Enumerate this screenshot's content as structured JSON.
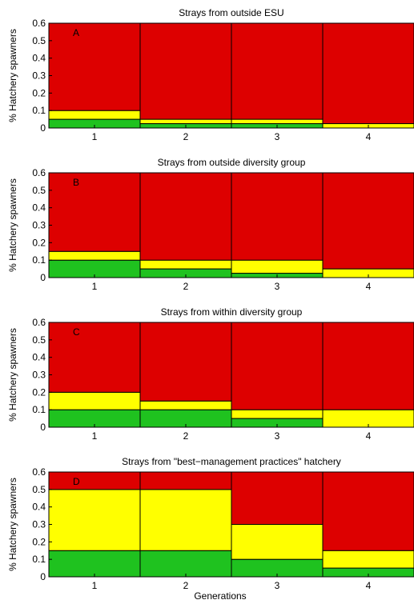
{
  "chart_data": [
    {
      "type": "bar",
      "stacked": true,
      "panel_label": "A",
      "title": "Strays from outside ESU",
      "ylabel": "% Hatchery spawners",
      "xlabel": "",
      "categories": [
        "1",
        "2",
        "3",
        "4"
      ],
      "ylim": [
        0,
        0.6
      ],
      "yticks": [
        "0",
        "0.1",
        "0.2",
        "0.3",
        "0.4",
        "0.5",
        "0.6"
      ],
      "zones": [
        {
          "color": "#1fc21f",
          "upper": [
            0.05,
            0.025,
            0.025,
            0
          ]
        },
        {
          "color": "#ffff00",
          "upper": [
            0.1,
            0.05,
            0.05,
            0.025
          ]
        },
        {
          "color": "#dd0000",
          "upper": [
            0.6,
            0.6,
            0.6,
            0.6
          ]
        }
      ]
    },
    {
      "type": "bar",
      "stacked": true,
      "panel_label": "B",
      "title": "Strays from outside diversity group",
      "ylabel": "% Hatchery spawners",
      "xlabel": "",
      "categories": [
        "1",
        "2",
        "3",
        "4"
      ],
      "ylim": [
        0,
        0.6
      ],
      "yticks": [
        "0",
        "0.1",
        "0.2",
        "0.3",
        "0.4",
        "0.5",
        "0.6"
      ],
      "zones": [
        {
          "color": "#1fc21f",
          "upper": [
            0.1,
            0.05,
            0.025,
            0
          ]
        },
        {
          "color": "#ffff00",
          "upper": [
            0.15,
            0.1,
            0.1,
            0.05
          ]
        },
        {
          "color": "#dd0000",
          "upper": [
            0.6,
            0.6,
            0.6,
            0.6
          ]
        }
      ]
    },
    {
      "type": "bar",
      "stacked": true,
      "panel_label": "C",
      "title": "Strays from within diversity group",
      "ylabel": "% Hatchery spawners",
      "xlabel": "",
      "categories": [
        "1",
        "2",
        "3",
        "4"
      ],
      "ylim": [
        0,
        0.6
      ],
      "yticks": [
        "0",
        "0.1",
        "0.2",
        "0.3",
        "0.4",
        "0.5",
        "0.6"
      ],
      "zones": [
        {
          "color": "#1fc21f",
          "upper": [
            0.1,
            0.1,
            0.05,
            0
          ]
        },
        {
          "color": "#ffff00",
          "upper": [
            0.2,
            0.15,
            0.1,
            0.1
          ]
        },
        {
          "color": "#dd0000",
          "upper": [
            0.6,
            0.6,
            0.6,
            0.6
          ]
        }
      ]
    },
    {
      "type": "bar",
      "stacked": true,
      "panel_label": "D",
      "title": "Strays from \"best−management practices\" hatchery",
      "ylabel": "% Hatchery spawners",
      "xlabel": "Generations",
      "categories": [
        "1",
        "2",
        "3",
        "4"
      ],
      "ylim": [
        0,
        0.6
      ],
      "yticks": [
        "0",
        "0.1",
        "0.2",
        "0.3",
        "0.4",
        "0.5",
        "0.6"
      ],
      "zones": [
        {
          "color": "#1fc21f",
          "upper": [
            0.15,
            0.15,
            0.1,
            0.05
          ]
        },
        {
          "color": "#ffff00",
          "upper": [
            0.5,
            0.5,
            0.3,
            0.15
          ]
        },
        {
          "color": "#dd0000",
          "upper": [
            0.6,
            0.6,
            0.6,
            0.6
          ]
        }
      ]
    }
  ]
}
